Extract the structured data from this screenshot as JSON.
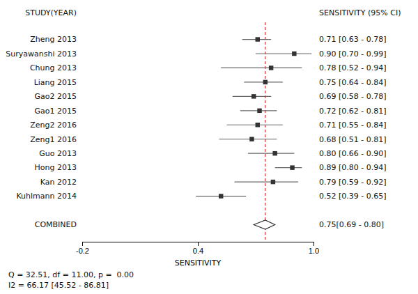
{
  "chart_data": {
    "type": "forest",
    "x_label": "SENSITIVITY",
    "column_headers": [
      "STUDY(YEAR)",
      "SENSITIVITY (95% CI)"
    ],
    "annotations": [
      "Q = 32.51, df = 11.00, p =  0.00",
      "I2 = 66.17 [45.52 - 86.81]"
    ],
    "categories": [
      "Zheng 2013",
      "Suryawanshi 2013",
      "Chung 2013",
      "Liang 2015",
      "Gao2 2015",
      "Gao1 2015",
      "Zeng2 2016",
      "Zeng1 2016",
      "Guo 2013",
      "Hong 2013",
      "Kan 2012",
      "Kuhlmann 2014"
    ],
    "values": [
      0.71,
      0.9,
      0.78,
      0.75,
      0.69,
      0.72,
      0.71,
      0.68,
      0.8,
      0.89,
      0.79,
      0.52
    ],
    "lower": [
      0.63,
      0.7,
      0.52,
      0.64,
      0.58,
      0.62,
      0.55,
      0.51,
      0.66,
      0.8,
      0.59,
      0.39
    ],
    "upper": [
      0.78,
      0.99,
      0.94,
      0.84,
      0.78,
      0.81,
      0.84,
      0.81,
      0.9,
      0.94,
      0.92,
      0.65
    ],
    "value_labels": [
      "0.71 [0.63 - 0.78]",
      "0.90 [0.70 - 0.99]",
      "0.78 [0.52 - 0.94]",
      "0.75 [0.64 - 0.84]",
      "0.69 [0.58 - 0.78]",
      "0.72 [0.62 - 0.81]",
      "0.71 [0.55 - 0.84]",
      "0.68 [0.51 - 0.81]",
      "0.80 [0.66 - 0.90]",
      "0.89 [0.80 - 0.94]",
      "0.79 [0.59 - 0.92]",
      "0.52 [0.39 - 0.65]"
    ],
    "combined": {
      "label": "COMBINED",
      "value": 0.75,
      "lower": 0.69,
      "upper": 0.8,
      "value_label": "0.75[0.69 - 0.80]"
    },
    "reference_line": {
      "value": 0.75,
      "color": "#cc0000"
    },
    "xlim": [
      -0.2,
      1.0
    ],
    "xticks": [
      -0.2,
      0.4,
      {
        "value": 1.0,
        "label": "1.0"
      }
    ]
  }
}
